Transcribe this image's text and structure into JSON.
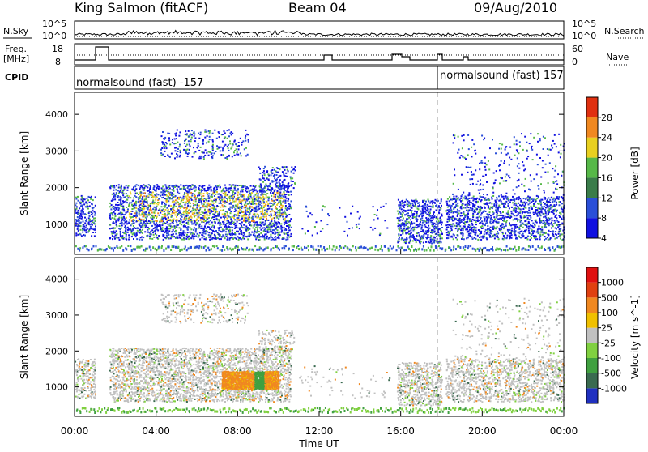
{
  "header": {
    "station": "King Salmon (fitACF)",
    "beam": "Beam 04",
    "date": "09/Aug/2010"
  },
  "summary": {
    "nsky_label": "N.Sky",
    "nsearch_label": "N.Search",
    "noise_ticks": [
      "10^5",
      "10^0"
    ],
    "freq_label_1": "Freq.",
    "freq_label_2": "[MHz]",
    "freq_ticks": [
      "18",
      "8"
    ],
    "nave_label": "Nave",
    "nave_ticks": [
      "60",
      "0"
    ],
    "cpid_label": "CPID",
    "cpid_left": "normalsound (fast) -157",
    "cpid_right": "normalsound (fast) 157"
  },
  "chart_data": [
    {
      "type": "heatmap",
      "name": "power",
      "ylabel": "Slant Range [km]",
      "yticks": [
        1000,
        2000,
        3000,
        4000
      ],
      "ylim": [
        180,
        4600
      ],
      "xlim": [
        0,
        24
      ],
      "colorbar_label": "Power [dB]",
      "colorbar_ticks": [
        "28",
        "24",
        "20",
        "16",
        "12",
        "8",
        "4"
      ],
      "colorbar_colors": [
        "#1010e0",
        "#2a4fd8",
        "#3a7c4a",
        "#56b848",
        "#e8d020",
        "#f08820",
        "#e03010"
      ],
      "scatter_regions": [
        {
          "t0": 0.0,
          "t1": 1.0,
          "r0": 700,
          "r1": 1800,
          "density": 0.55
        },
        {
          "t0": 1.7,
          "t1": 10.6,
          "r0": 600,
          "r1": 2100,
          "density": 0.6
        },
        {
          "t0": 4.2,
          "t1": 8.5,
          "r0": 2800,
          "r1": 3600,
          "density": 0.25
        },
        {
          "t0": 9.0,
          "t1": 10.8,
          "r0": 2000,
          "r1": 2600,
          "density": 0.35
        },
        {
          "t0": 15.8,
          "t1": 18.0,
          "r0": 500,
          "r1": 1700,
          "density": 0.55
        },
        {
          "t0": 18.2,
          "t1": 24.0,
          "r0": 600,
          "r1": 1800,
          "density": 0.5
        },
        {
          "t0": 18.5,
          "t1": 24.0,
          "r0": 1800,
          "r1": 3500,
          "density": 0.08
        },
        {
          "t0": 11.0,
          "t1": 15.5,
          "r0": 700,
          "r1": 1600,
          "density": 0.05
        }
      ]
    },
    {
      "type": "heatmap",
      "name": "velocity",
      "ylabel": "Slant Range [km]",
      "yticks": [
        1000,
        2000,
        3000,
        4000
      ],
      "ylim": [
        180,
        4600
      ],
      "xlim": [
        0,
        24
      ],
      "colorbar_label": "Velocity [m s^-1]",
      "colorbar_ticks": [
        "1000",
        "500",
        "100",
        "25",
        "-25",
        "-100",
        "-500",
        "-1000"
      ],
      "colorbar_colors": [
        "#2030c0",
        "#3a6a50",
        "#40a040",
        "#80d040",
        "#c0c0c0",
        "#f0c000",
        "#f08820",
        "#e04010",
        "#e01010"
      ],
      "orange_block": {
        "t0": 7.2,
        "t1": 10.0,
        "r0": 950,
        "r1": 1450
      }
    }
  ],
  "xaxis": {
    "ticks": [
      "00:00",
      "04:00",
      "08:00",
      "12:00",
      "16:00",
      "20:00",
      "00:00"
    ],
    "label": "Time UT"
  }
}
